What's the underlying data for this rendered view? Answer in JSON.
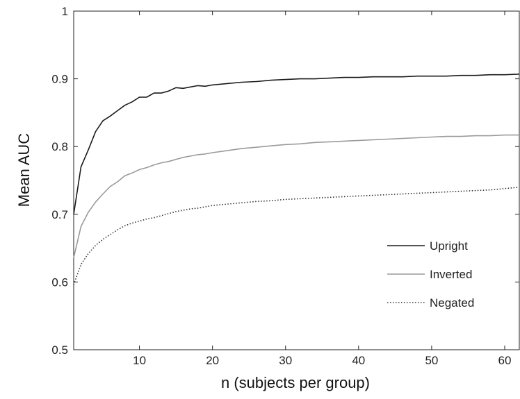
{
  "chart_data": {
    "type": "line",
    "xlabel": "n (subjects per group)",
    "ylabel": "Mean AUC",
    "xlim": [
      1,
      62
    ],
    "ylim": [
      0.5,
      1.0
    ],
    "x_ticks": [
      10,
      20,
      30,
      40,
      50,
      60
    ],
    "y_ticks": [
      0.5,
      0.6,
      0.7,
      0.8,
      0.9,
      1.0
    ],
    "x_tick_labels": [
      "10",
      "20",
      "30",
      "40",
      "50",
      "60"
    ],
    "y_tick_labels": [
      "0.5",
      "0.6",
      "0.7",
      "0.8",
      "0.9",
      "1"
    ],
    "grid": false,
    "legend_position": "center-right",
    "series": [
      {
        "name": "Upright",
        "color": "#1a1a1a",
        "dash": "solid",
        "x": [
          1,
          2,
          3,
          4,
          5,
          6,
          7,
          8,
          9,
          10,
          11,
          12,
          13,
          14,
          15,
          16,
          17,
          18,
          19,
          20,
          22,
          24,
          26,
          28,
          30,
          32,
          34,
          36,
          38,
          40,
          42,
          44,
          46,
          48,
          50,
          52,
          54,
          56,
          58,
          60,
          62
        ],
        "values": [
          0.7,
          0.77,
          0.795,
          0.822,
          0.838,
          0.845,
          0.853,
          0.861,
          0.866,
          0.873,
          0.873,
          0.879,
          0.879,
          0.882,
          0.887,
          0.886,
          0.888,
          0.89,
          0.889,
          0.891,
          0.893,
          0.895,
          0.896,
          0.898,
          0.899,
          0.9,
          0.9,
          0.901,
          0.902,
          0.902,
          0.903,
          0.903,
          0.903,
          0.904,
          0.904,
          0.904,
          0.905,
          0.905,
          0.906,
          0.906,
          0.907
        ]
      },
      {
        "name": "Inverted",
        "color": "#9a9a9a",
        "dash": "solid",
        "x": [
          1,
          2,
          3,
          4,
          5,
          6,
          7,
          8,
          9,
          10,
          11,
          12,
          13,
          14,
          15,
          16,
          17,
          18,
          19,
          20,
          22,
          24,
          26,
          28,
          30,
          32,
          34,
          36,
          38,
          40,
          42,
          44,
          46,
          48,
          50,
          52,
          54,
          56,
          58,
          60,
          62
        ],
        "values": [
          0.636,
          0.682,
          0.703,
          0.718,
          0.73,
          0.741,
          0.748,
          0.757,
          0.761,
          0.766,
          0.769,
          0.773,
          0.776,
          0.778,
          0.781,
          0.784,
          0.786,
          0.788,
          0.789,
          0.791,
          0.794,
          0.797,
          0.799,
          0.801,
          0.803,
          0.804,
          0.806,
          0.807,
          0.808,
          0.809,
          0.81,
          0.811,
          0.812,
          0.813,
          0.814,
          0.815,
          0.815,
          0.816,
          0.816,
          0.817,
          0.817
        ]
      },
      {
        "name": "Negated",
        "color": "#333333",
        "dash": "dotted",
        "x": [
          1,
          2,
          3,
          4,
          5,
          6,
          7,
          8,
          9,
          10,
          11,
          12,
          13,
          14,
          15,
          16,
          17,
          18,
          19,
          20,
          22,
          24,
          26,
          28,
          30,
          32,
          34,
          36,
          38,
          40,
          42,
          44,
          46,
          48,
          50,
          52,
          54,
          56,
          58,
          60,
          62
        ],
        "values": [
          0.596,
          0.626,
          0.642,
          0.654,
          0.663,
          0.67,
          0.677,
          0.683,
          0.687,
          0.69,
          0.693,
          0.695,
          0.698,
          0.701,
          0.704,
          0.706,
          0.708,
          0.709,
          0.711,
          0.713,
          0.715,
          0.717,
          0.719,
          0.72,
          0.722,
          0.723,
          0.724,
          0.725,
          0.726,
          0.727,
          0.728,
          0.729,
          0.73,
          0.731,
          0.732,
          0.733,
          0.734,
          0.735,
          0.736,
          0.738,
          0.74
        ]
      }
    ]
  }
}
